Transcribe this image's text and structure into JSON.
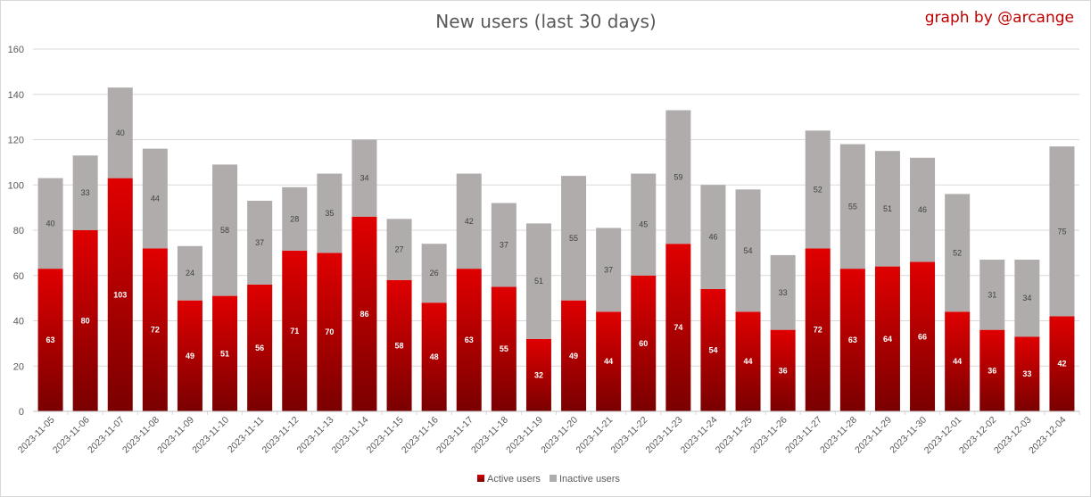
{
  "credit": "graph by @arcange",
  "colors": {
    "active_top": "#e00000",
    "active_bottom": "#7a0000",
    "inactive": "#b0acac",
    "grid": "#d9d9d9",
    "credit": "#c00000"
  },
  "chart_data": {
    "type": "bar",
    "stacked": true,
    "title": "New users (last 30 days)",
    "xlabel": "",
    "ylabel": "",
    "ylim": [
      0,
      160
    ],
    "yticks": [
      0,
      20,
      40,
      60,
      80,
      100,
      120,
      140,
      160
    ],
    "grid": true,
    "legend_position": "bottom",
    "categories": [
      "2023-11-05",
      "2023-11-06",
      "2023-11-07",
      "2023-11-08",
      "2023-11-09",
      "2023-11-10",
      "2023-11-11",
      "2023-11-12",
      "2023-11-13",
      "2023-11-14",
      "2023-11-15",
      "2023-11-16",
      "2023-11-17",
      "2023-11-18",
      "2023-11-19",
      "2023-11-20",
      "2023-11-21",
      "2023-11-22",
      "2023-11-23",
      "2023-11-24",
      "2023-11-25",
      "2023-11-26",
      "2023-11-27",
      "2023-11-28",
      "2023-11-29",
      "2023-11-30",
      "2023-12-01",
      "2023-12-02",
      "2023-12-03",
      "2023-12-04"
    ],
    "series": [
      {
        "name": "Active users",
        "values": [
          63,
          80,
          103,
          72,
          49,
          51,
          56,
          71,
          70,
          86,
          58,
          48,
          63,
          55,
          32,
          49,
          44,
          60,
          74,
          54,
          44,
          36,
          72,
          63,
          64,
          66,
          44,
          36,
          33,
          42
        ]
      },
      {
        "name": "Inactive users",
        "values": [
          40,
          33,
          40,
          44,
          24,
          58,
          37,
          28,
          35,
          34,
          27,
          26,
          42,
          37,
          51,
          55,
          37,
          45,
          59,
          46,
          54,
          33,
          52,
          55,
          51,
          46,
          52,
          31,
          34,
          75
        ]
      }
    ]
  }
}
